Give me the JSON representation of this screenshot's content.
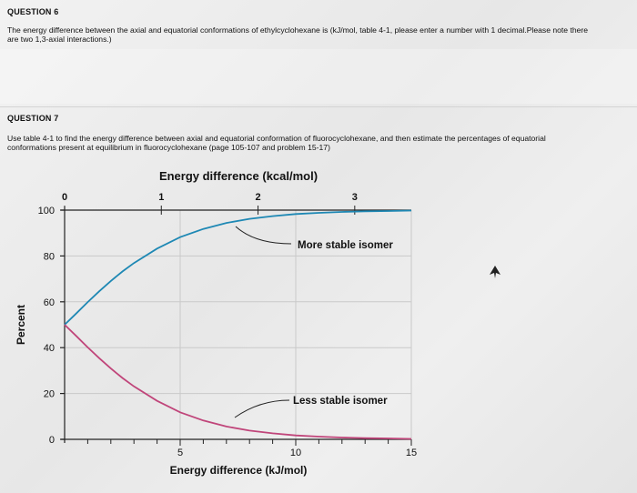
{
  "question6": {
    "header": "QUESTION 6",
    "text_line1": "The energy difference between the axial and equatorial conformations of ethylcyclohexane is (kJ/mol, table 4-1, please enter a number with 1 decimal.Please note there",
    "text_line2": "are two 1,3-axial interactions.)"
  },
  "question7": {
    "header": "QUESTION 7",
    "text_line1": "Use table 4-1 to find  the energy difference between axial and equatorial conformation of fluorocyclohexane, and then estimate the percentages of equatorial",
    "text_line2": "conformations present at equilibrium in fluorocyclohexane (page 105-107 and problem 15-17)"
  },
  "chart_data": {
    "type": "line",
    "title": "Energy difference (kcal/mol)",
    "xlabel": "Energy difference (kJ/mol)",
    "ylabel": "Percent",
    "xlim": [
      0,
      15
    ],
    "ylim": [
      0,
      100
    ],
    "x_ticks_bottom": [
      "5",
      "10",
      "15"
    ],
    "x_ticks_top": [
      "0",
      "1",
      "2",
      "3"
    ],
    "y_ticks": [
      "0",
      "20",
      "40",
      "60",
      "80",
      "100"
    ],
    "grid": true,
    "series": [
      {
        "name": "More stable isomer",
        "color": "#1e88b4",
        "x": [
          0,
          0.5,
          1,
          1.5,
          2,
          2.5,
          3,
          4,
          5,
          6,
          7,
          8,
          9,
          10,
          11,
          12,
          13,
          14,
          15
        ],
        "values": [
          50,
          54.9,
          59.9,
          64.6,
          69.1,
          73.2,
          76.9,
          83.2,
          88.2,
          91.8,
          94.4,
          96.2,
          97.4,
          98.3,
          98.8,
          99.2,
          99.5,
          99.6,
          99.8
        ]
      },
      {
        "name": "Less stable isomer",
        "color": "#c0457a",
        "x": [
          0,
          0.5,
          1,
          1.5,
          2,
          2.5,
          3,
          4,
          5,
          6,
          7,
          8,
          9,
          10,
          11,
          12,
          13,
          14,
          15
        ],
        "values": [
          50,
          45.1,
          40.1,
          35.4,
          30.9,
          26.8,
          23.1,
          16.8,
          11.8,
          8.2,
          5.6,
          3.8,
          2.6,
          1.7,
          1.2,
          0.8,
          0.5,
          0.4,
          0.2
        ]
      }
    ],
    "annotations": [
      "More stable isomer",
      "Less stable isomer"
    ]
  }
}
